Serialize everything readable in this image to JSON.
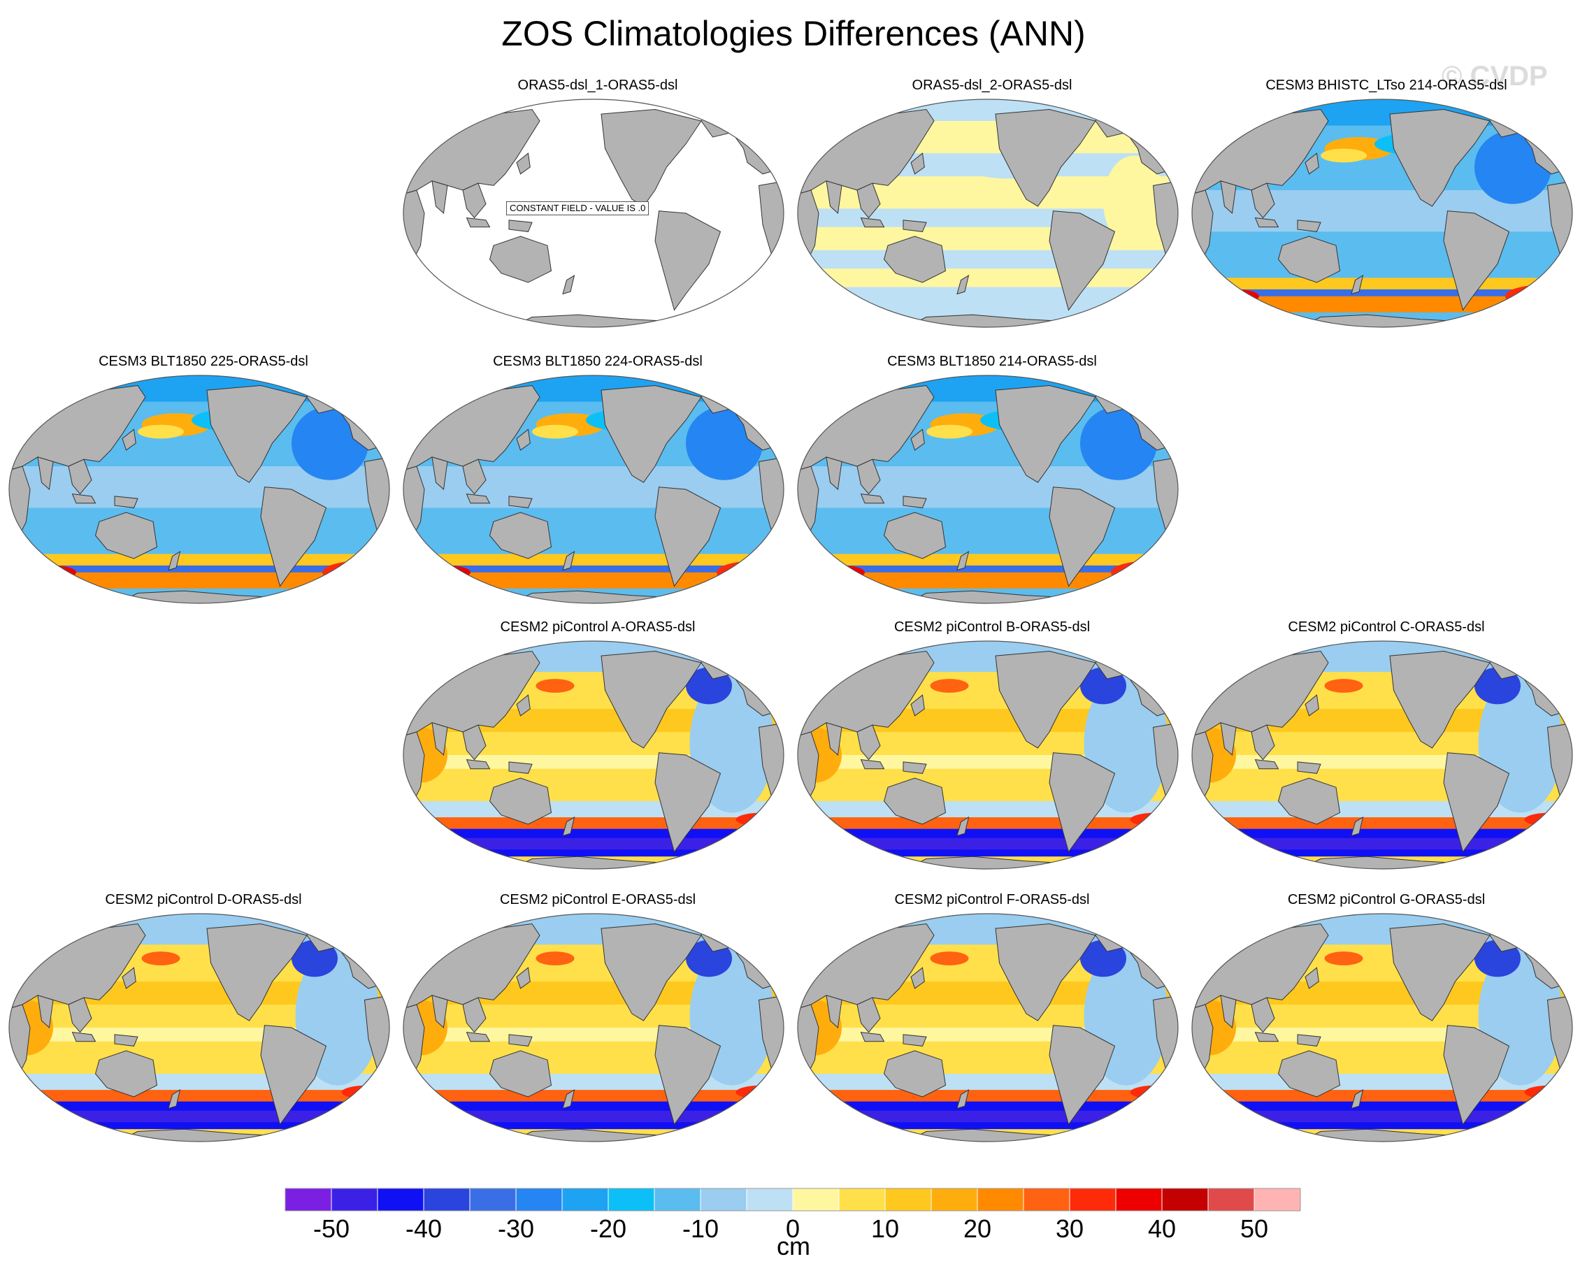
{
  "figure": {
    "title": "ZOS Climatologies Differences (ANN)",
    "watermark": "© CVDP",
    "constant_field_label": "CONSTANT FIELD - VALUE IS .0"
  },
  "colors": {
    "land": "#b3b3b3",
    "coastline": "#333333",
    "ocean_empty": "#ffffff"
  },
  "map_data": {
    "projection": "Robinson (Pacific-centered)",
    "panels": [
      {
        "title": "ORAS5-dsl_1-ORAS5-dsl",
        "pattern": "constant"
      },
      {
        "title": "ORAS5-dsl_2-ORAS5-dsl",
        "pattern": "small"
      },
      {
        "title": "CESM3 BHISTC_LTso 214-ORAS5-dsl",
        "pattern": "cesm3"
      },
      {
        "title": "CESM3 BLT1850 225-ORAS5-dsl",
        "pattern": "cesm3"
      },
      {
        "title": "CESM3 BLT1850 224-ORAS5-dsl",
        "pattern": "cesm3"
      },
      {
        "title": "CESM3 BLT1850 214-ORAS5-dsl",
        "pattern": "cesm3"
      },
      {
        "title": "CESM2 piControl A-ORAS5-dsl",
        "pattern": "cesm2"
      },
      {
        "title": "CESM2 piControl B-ORAS5-dsl",
        "pattern": "cesm2"
      },
      {
        "title": "CESM2 piControl C-ORAS5-dsl",
        "pattern": "cesm2"
      },
      {
        "title": "CESM2 piControl D-ORAS5-dsl",
        "pattern": "cesm2"
      },
      {
        "title": "CESM2 piControl E-ORAS5-dsl",
        "pattern": "cesm2"
      },
      {
        "title": "CESM2 piControl F-ORAS5-dsl",
        "pattern": "cesm2"
      },
      {
        "title": "CESM2 piControl G-ORAS5-dsl",
        "pattern": "cesm2"
      }
    ]
  },
  "colorbar": {
    "unit": "cm",
    "levels": [
      -50,
      -45,
      -40,
      -35,
      -30,
      -25,
      -20,
      -15,
      -10,
      -5,
      0,
      5,
      10,
      15,
      20,
      25,
      30,
      35,
      40,
      45,
      50
    ],
    "tick_labels": [
      "-50",
      "-40",
      "-30",
      "-20",
      "-10",
      "0",
      "10",
      "20",
      "30",
      "40",
      "50"
    ],
    "colors": [
      "#7b1fe3",
      "#3b21e6",
      "#1010f5",
      "#2a44de",
      "#3a6ee6",
      "#2585f2",
      "#1ea3f2",
      "#0cc0f7",
      "#5bbcef",
      "#9acdf0",
      "#bde0f5",
      "#fff6a0",
      "#ffe04a",
      "#ffc81e",
      "#ffad0d",
      "#ff8a00",
      "#ff6210",
      "#ff2a0a",
      "#ee0000",
      "#c40000",
      "#e04a4a",
      "#ffb3b3"
    ]
  }
}
